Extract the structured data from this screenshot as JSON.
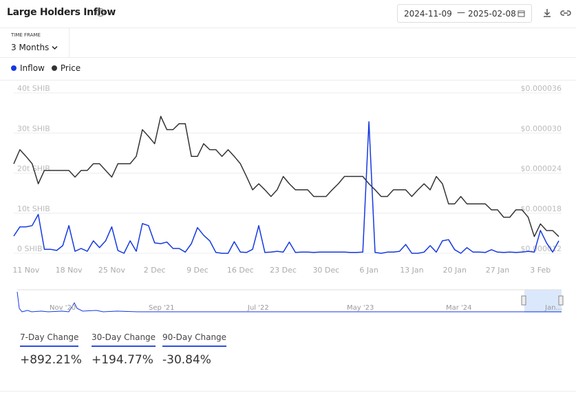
{
  "header": {
    "title": "Large Holders Inflow",
    "start_date": "2024-11-09",
    "end_date": "2025-02-08"
  },
  "time_frame": {
    "label": "TIME FRAME",
    "value": "3 Months"
  },
  "navigator_labels": [
    "Nov '20",
    "Sep '21",
    "Jul '22",
    "May '23",
    "Mar '24",
    "Jan..."
  ],
  "stats": [
    {
      "label": "7-Day Change",
      "value": "+892.21%"
    },
    {
      "label": "30-Day Change",
      "value": "+194.77%"
    },
    {
      "label": "90-Day Change",
      "value": "-30.84%"
    }
  ],
  "chart_data": {
    "type": "line",
    "categories": [
      null,
      null,
      "11 Nov",
      null,
      null,
      null,
      null,
      null,
      null,
      "18 Nov",
      null,
      null,
      null,
      null,
      null,
      null,
      "25 Nov",
      null,
      null,
      null,
      null,
      null,
      null,
      "2 Dec",
      null,
      null,
      null,
      null,
      null,
      null,
      "9 Dec",
      null,
      null,
      null,
      null,
      null,
      null,
      "16 Dec",
      null,
      null,
      null,
      null,
      null,
      null,
      "23 Dec",
      null,
      null,
      null,
      null,
      null,
      null,
      "30 Dec",
      null,
      null,
      null,
      null,
      null,
      null,
      "6 Jan",
      null,
      null,
      null,
      null,
      null,
      null,
      "13 Jan",
      null,
      null,
      null,
      null,
      null,
      null,
      "20 Jan",
      null,
      null,
      null,
      null,
      null,
      null,
      "27 Jan",
      null,
      null,
      null,
      null,
      null,
      null,
      "3 Feb",
      null,
      null,
      null
    ],
    "series": [
      {
        "name": "Inflow",
        "color": "#1438e0",
        "axis": "y",
        "values": [
          4.3,
          6.6,
          6.6,
          6.9,
          9.7,
          1.0,
          1.0,
          0.7,
          1.9,
          6.9,
          0.5,
          1.2,
          0.5,
          3.1,
          1.4,
          3.1,
          6.6,
          0.7,
          0,
          3.1,
          0.5,
          7.4,
          6.9,
          2.6,
          2.4,
          2.8,
          1.2,
          1.2,
          0.3,
          2.4,
          6.4,
          4.5,
          3.1,
          0.2,
          0,
          0,
          2.9,
          0.3,
          0.2,
          1.0,
          6.9,
          0.2,
          0.3,
          0.5,
          0.3,
          2.8,
          0.2,
          0.3,
          0.3,
          0.2,
          0.3,
          0.3,
          0.3,
          0.3,
          0.3,
          0.2,
          0.2,
          0.3,
          32.8,
          0.2,
          0,
          0.3,
          0.3,
          0.5,
          2.2,
          0,
          0,
          0.3,
          1.9,
          0.3,
          3.1,
          3.4,
          0.9,
          0,
          1.4,
          0.3,
          0.3,
          0.2,
          0.9,
          0.3,
          0.2,
          0.3,
          0.2,
          0.3,
          0.5,
          0.3,
          5.7,
          2.6,
          0.3,
          3.1
        ]
      },
      {
        "name": "Price",
        "color": "#333333",
        "axis": "y2",
        "values": [
          2.54e-05,
          2.75e-05,
          2.65e-05,
          2.54e-05,
          2.24e-05,
          2.44e-05,
          2.44e-05,
          2.44e-05,
          2.44e-05,
          2.44e-05,
          2.34e-05,
          2.44e-05,
          2.44e-05,
          2.54e-05,
          2.54e-05,
          2.44e-05,
          2.34e-05,
          2.54e-05,
          2.54e-05,
          2.54e-05,
          2.65e-05,
          3.05e-05,
          2.95e-05,
          2.84e-05,
          3.25e-05,
          3.05e-05,
          3.05e-05,
          3.14e-05,
          3.14e-05,
          2.65e-05,
          2.65e-05,
          2.84e-05,
          2.75e-05,
          2.75e-05,
          2.65e-05,
          2.75e-05,
          2.65e-05,
          2.54e-05,
          2.35e-05,
          2.15e-05,
          2.24e-05,
          2.15e-05,
          2.05e-05,
          2.15e-05,
          2.35e-05,
          2.24e-05,
          2.15e-05,
          2.15e-05,
          2.15e-05,
          2.05e-05,
          2.05e-05,
          2.05e-05,
          2.15e-05,
          2.24e-05,
          2.35e-05,
          2.35e-05,
          2.35e-05,
          2.35e-05,
          2.24e-05,
          2.15e-05,
          2.05e-05,
          2.05e-05,
          2.15e-05,
          2.15e-05,
          2.15e-05,
          2.05e-05,
          2.15e-05,
          2.24e-05,
          2.15e-05,
          2.35e-05,
          2.24e-05,
          1.94e-05,
          1.94e-05,
          2.05e-05,
          1.94e-05,
          1.94e-05,
          1.94e-05,
          1.94e-05,
          1.85e-05,
          1.85e-05,
          1.74e-05,
          1.74e-05,
          1.85e-05,
          1.85e-05,
          1.74e-05,
          1.45e-05,
          1.64e-05,
          1.54e-05,
          1.54e-05,
          1.45e-05
        ]
      }
    ],
    "ylim": [
      0,
      40
    ],
    "yticks": [
      {
        "value": 0,
        "label": "0 SHIB"
      },
      {
        "value": 10,
        "label": "10t SHIB"
      },
      {
        "value": 20,
        "label": "20t SHIB"
      },
      {
        "value": 30,
        "label": "30t SHIB"
      },
      {
        "value": 40,
        "label": "40t SHIB"
      }
    ],
    "y2lim": [
      1.2e-05,
      3.6e-05
    ],
    "y2ticks": [
      {
        "value": 1.2e-05,
        "label": "$0.000012"
      },
      {
        "value": 1.8e-05,
        "label": "$0.000018"
      },
      {
        "value": 2.4e-05,
        "label": "$0.000024"
      },
      {
        "value": 3e-05,
        "label": "$0.000030"
      },
      {
        "value": 3.6e-05,
        "label": "$0.000036"
      }
    ],
    "grid": true
  }
}
